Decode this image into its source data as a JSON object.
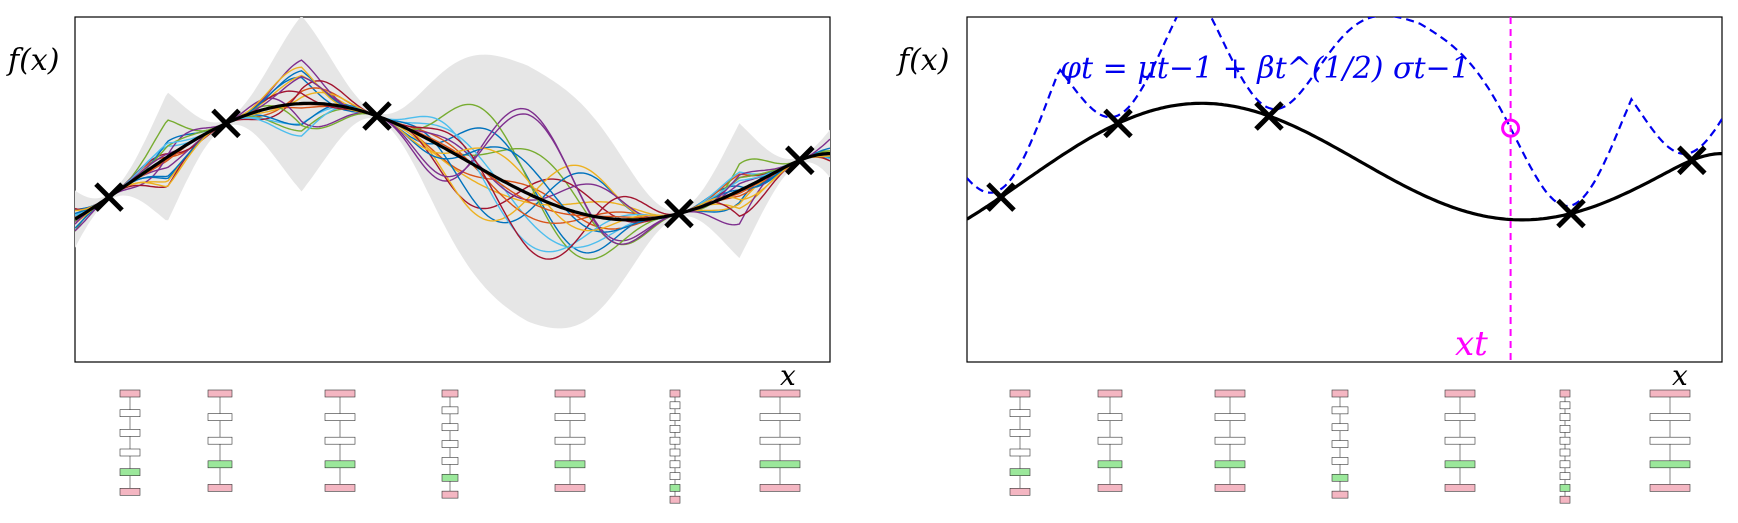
{
  "left_panel": {
    "ylabel": "f(x)",
    "xlabel": "x",
    "x_range": [
      0,
      10
    ],
    "y_range": [
      -2.8,
      2.4
    ],
    "gp_band_visible": true,
    "samples_count": 18,
    "observations": [
      [
        0.45,
        -0.35
      ],
      [
        2.0,
        0.25
      ],
      [
        4.0,
        -0.95
      ],
      [
        8.0,
        1.1
      ],
      [
        9.6,
        0.15
      ]
    ],
    "colors": {
      "true_function": "#000000",
      "band": "#e6e6e6",
      "samples": [
        "#0072bd",
        "#d95319",
        "#edb120",
        "#7e2f8e",
        "#77ac30",
        "#4dbeee",
        "#a2142f"
      ]
    }
  },
  "right_panel": {
    "ylabel": "f(x)",
    "xlabel": "x",
    "acquisition_label": "φt = μt−1 + βt^(1/2) σt−1",
    "xt_label": "xt",
    "xt_value": 7.2,
    "observations": [
      [
        0.45,
        -0.35
      ],
      [
        2.0,
        0.25
      ],
      [
        4.0,
        -0.95
      ],
      [
        8.0,
        1.1
      ],
      [
        9.6,
        0.15
      ]
    ],
    "colors": {
      "true_function": "#000000",
      "acquisition": "#0000ee",
      "argmax_marker": "#ff00ff",
      "xt_line": "#ff00ff"
    }
  },
  "network_diagrams": [
    {
      "set": "left",
      "nodes": []
    },
    {
      "set": "right",
      "nodes": []
    }
  ]
}
